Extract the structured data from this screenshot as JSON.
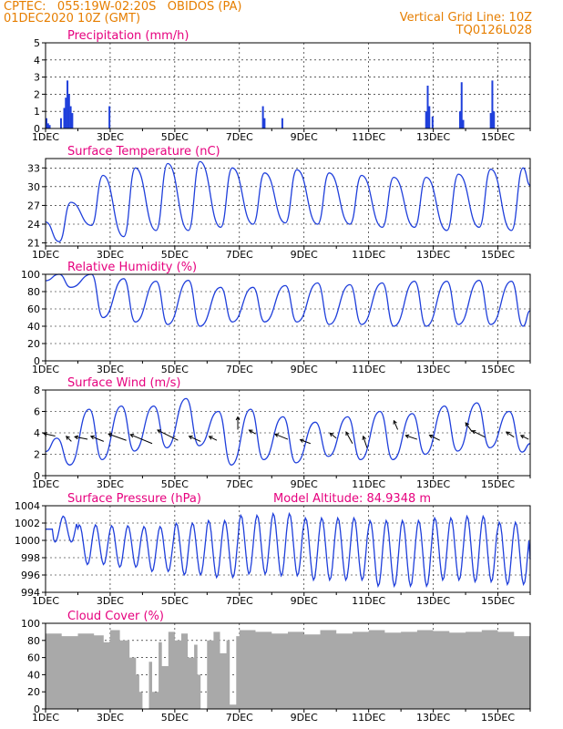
{
  "header": {
    "line1": "CPTEC:   055:19W-02:20S   OBIDOS (PA)",
    "line2": "01DEC2020 10Z (GMT)",
    "grid_note": "Vertical Grid Line: 10Z",
    "model_code": "TQ0126L028"
  },
  "colors": {
    "accent": "#e67e00",
    "title": "#e6007e",
    "series": "#1f3fdb",
    "arrow": "#000000",
    "cloud": "#a9a9a9"
  },
  "x_ticks": [
    "1DEC",
    "3DEC",
    "5DEC",
    "7DEC",
    "9DEC",
    "11DEC",
    "13DEC",
    "15DEC"
  ],
  "chart_data": [
    {
      "type": "bar",
      "title": "Precipitation (mm/h)",
      "x_unit": "day",
      "xlim": [
        1,
        16
      ],
      "ylim": [
        0,
        5
      ],
      "yticks": [
        0,
        1,
        2,
        3,
        4,
        5
      ],
      "x": [
        1.0,
        1.05,
        1.1,
        1.45,
        1.55,
        1.6,
        1.65,
        1.7,
        1.75,
        1.8,
        2.95,
        7.7,
        7.75,
        8.3,
        12.75,
        12.8,
        12.85,
        12.95,
        13.8,
        13.85,
        13.9,
        14.75,
        14.8,
        14.85
      ],
      "values": [
        0.6,
        0.3,
        0.2,
        0.6,
        1.2,
        1.8,
        2.8,
        2.0,
        1.3,
        0.9,
        1.3,
        1.3,
        0.6,
        0.6,
        1.0,
        2.5,
        1.3,
        0.7,
        1.0,
        2.7,
        0.5,
        0.9,
        2.8,
        1.0
      ]
    },
    {
      "type": "line",
      "title": "Surface Temperature (nC)",
      "ylim": [
        20.5,
        34.5
      ],
      "yticks": [
        21,
        24,
        27,
        30,
        33
      ],
      "daily": {
        "min": [
          21.2,
          23.8,
          22.0,
          23.0,
          23.0,
          23.5,
          24.0,
          24.2,
          24.0,
          24.0,
          23.5,
          23.5,
          23.0,
          23.5,
          23.0
        ],
        "max": [
          27.5,
          31.8,
          33.0,
          33.7,
          34.0,
          33.0,
          32.2,
          32.7,
          32.2,
          31.8,
          31.5,
          31.5,
          32.0,
          32.8,
          33.0
        ],
        "min_frac": 0.42,
        "max_frac": 0.78
      },
      "x_end": 16.0,
      "end_value": 30.2
    },
    {
      "type": "line",
      "title": "Relative Humidity (%)",
      "ylim": [
        0,
        100
      ],
      "yticks": [
        0,
        20,
        40,
        60,
        80,
        100
      ],
      "daily": {
        "min": [
          85,
          50,
          45,
          42,
          40,
          45,
          45,
          45,
          42,
          42,
          40,
          40,
          42,
          42,
          40
        ],
        "max": [
          100,
          100,
          95,
          92,
          93,
          85,
          85,
          87,
          90,
          88,
          90,
          92,
          92,
          93,
          92
        ],
        "min_frac": 0.78,
        "max_frac": 0.42
      },
      "x_end": 16.0,
      "end_value": 58
    },
    {
      "type": "line",
      "title": "Surface Wind (m/s)",
      "ylim": [
        0,
        8
      ],
      "yticks": [
        0,
        2,
        4,
        6,
        8
      ],
      "daily": {
        "min": [
          1.0,
          1.5,
          2.3,
          2.6,
          2.8,
          1.0,
          1.5,
          1.2,
          1.8,
          1.5,
          1.5,
          2.0,
          2.3,
          2.6,
          2.2
        ],
        "max": [
          3.5,
          6.2,
          6.5,
          6.5,
          7.2,
          6.0,
          6.2,
          5.5,
          5.0,
          5.5,
          6.0,
          5.8,
          6.5,
          6.8,
          6.0
        ],
        "min_frac": 0.75,
        "max_frac": 0.35
      },
      "x_end": 16.0,
      "end_value": 3.0,
      "arrows": [
        {
          "x": 1.3,
          "y": 3.7,
          "u": -0.9,
          "v": 0.2
        },
        {
          "x": 1.8,
          "y": 3.2,
          "u": -0.4,
          "v": 0.4
        },
        {
          "x": 2.3,
          "y": 3.4,
          "u": -1.0,
          "v": 0.2
        },
        {
          "x": 2.8,
          "y": 3.2,
          "u": -1.0,
          "v": 0.4
        },
        {
          "x": 3.5,
          "y": 3.3,
          "u": -1.4,
          "v": 0.5
        },
        {
          "x": 4.3,
          "y": 3.0,
          "u": -1.7,
          "v": 0.7
        },
        {
          "x": 5.1,
          "y": 3.3,
          "u": -1.6,
          "v": 0.8
        },
        {
          "x": 5.8,
          "y": 3.2,
          "u": -0.9,
          "v": 0.4
        },
        {
          "x": 6.3,
          "y": 3.3,
          "u": -0.6,
          "v": 0.3
        },
        {
          "x": 6.95,
          "y": 4.3,
          "u": 0.0,
          "v": 1.0
        },
        {
          "x": 7.5,
          "y": 3.9,
          "u": -0.5,
          "v": 0.3
        },
        {
          "x": 8.5,
          "y": 3.4,
          "u": -1.0,
          "v": 0.4
        },
        {
          "x": 9.2,
          "y": 3.0,
          "u": -0.8,
          "v": 0.3
        },
        {
          "x": 10.0,
          "y": 3.5,
          "u": -0.5,
          "v": 0.4
        },
        {
          "x": 10.5,
          "y": 3.0,
          "u": -0.5,
          "v": 0.9
        },
        {
          "x": 10.95,
          "y": 2.6,
          "u": -0.3,
          "v": 0.9
        },
        {
          "x": 11.9,
          "y": 4.3,
          "u": -0.3,
          "v": 0.7
        },
        {
          "x": 12.5,
          "y": 3.4,
          "u": -0.9,
          "v": 0.3
        },
        {
          "x": 13.2,
          "y": 3.3,
          "u": -0.8,
          "v": 0.4
        },
        {
          "x": 14.2,
          "y": 4.1,
          "u": -0.5,
          "v": 0.7
        },
        {
          "x": 14.6,
          "y": 3.6,
          "u": -1.0,
          "v": 0.5
        },
        {
          "x": 15.5,
          "y": 3.6,
          "u": -0.6,
          "v": 0.4
        },
        {
          "x": 15.95,
          "y": 3.4,
          "u": -0.6,
          "v": 0.3
        }
      ]
    },
    {
      "type": "line",
      "title": "Surface Pressure (hPa)",
      "subtitle": "Model Altitude: 84.9348 m",
      "ylim": [
        994,
        1004
      ],
      "yticks": [
        994,
        996,
        998,
        1000,
        1002,
        1004
      ],
      "pressure": {
        "base": [
          1001.3,
          999.5,
          999.3,
          999.0,
          999.0,
          999.0,
          999.5,
          999.5,
          999.0,
          999.0,
          998.5,
          998.5,
          999.0,
          999.0,
          998.5
        ],
        "amp": [
          1.5,
          2.3,
          2.4,
          2.6,
          3.0,
          3.3,
          3.4,
          3.6,
          3.6,
          3.6,
          3.8,
          3.8,
          3.6,
          3.8,
          3.6
        ]
      },
      "x_end": 16.0,
      "end_value": 997.8
    },
    {
      "type": "area",
      "title": "Cloud Cover (%)",
      "ylim": [
        0,
        100
      ],
      "yticks": [
        0,
        20,
        40,
        60,
        80,
        100
      ],
      "x": [
        1.0,
        1.5,
        2.0,
        2.5,
        2.8,
        3.0,
        3.3,
        3.6,
        3.8,
        3.9,
        4.0,
        4.2,
        4.3,
        4.5,
        4.6,
        4.8,
        5.0,
        5.2,
        5.4,
        5.6,
        5.7,
        5.8,
        6.0,
        6.2,
        6.4,
        6.6,
        6.7,
        6.9,
        7.0,
        7.5,
        8.0,
        8.5,
        9.0,
        9.5,
        10.0,
        10.5,
        11.0,
        11.5,
        12.0,
        12.5,
        13.0,
        13.5,
        14.0,
        14.5,
        15.0,
        15.5,
        16.0
      ],
      "values": [
        88,
        85,
        88,
        86,
        78,
        92,
        80,
        60,
        40,
        20,
        0,
        55,
        20,
        78,
        50,
        90,
        80,
        88,
        60,
        75,
        40,
        0,
        80,
        90,
        65,
        80,
        5,
        85,
        92,
        90,
        88,
        90,
        87,
        92,
        88,
        90,
        92,
        89,
        90,
        92,
        91,
        89,
        90,
        92,
        90,
        85,
        80
      ]
    }
  ]
}
